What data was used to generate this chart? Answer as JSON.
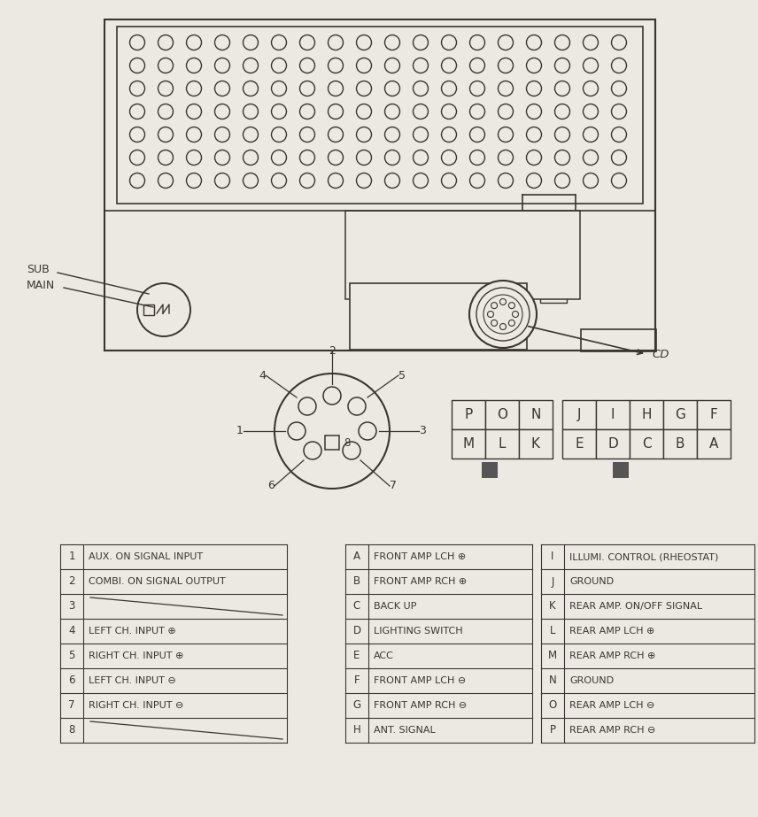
{
  "bg_color": "#ece9e2",
  "line_color": "#3a3530",
  "table1": {
    "rows": [
      [
        "1",
        "AUX. ON SIGNAL INPUT"
      ],
      [
        "2",
        "COMBI. ON SIGNAL OUTPUT"
      ],
      [
        "3",
        ""
      ],
      [
        "4",
        "LEFT CH. INPUT ⊕"
      ],
      [
        "5",
        "RIGHT CH. INPUT ⊕"
      ],
      [
        "6",
        "LEFT CH. INPUT ⊖"
      ],
      [
        "7",
        "RIGHT CH. INPUT ⊖"
      ],
      [
        "8",
        ""
      ]
    ]
  },
  "table2": {
    "rows": [
      [
        "A",
        "FRONT AMP LCH ⊕"
      ],
      [
        "B",
        "FRONT AMP RCH ⊕"
      ],
      [
        "C",
        "BACK UP"
      ],
      [
        "D",
        "LIGHTING SWITCH"
      ],
      [
        "E",
        "ACC"
      ],
      [
        "F",
        "FRONT AMP LCH ⊖"
      ],
      [
        "G",
        "FRONT AMP RCH ⊖"
      ],
      [
        "H",
        "ANT. SIGNAL"
      ]
    ]
  },
  "table3": {
    "rows": [
      [
        "I",
        "ILLUMI. CONTROL (RHEOSTAT)"
      ],
      [
        "J",
        "GROUND"
      ],
      [
        "K",
        "REAR AMP. ON/OFF SIGNAL"
      ],
      [
        "L",
        "REAR AMP LCH ⊕"
      ],
      [
        "M",
        "REAR AMP RCH ⊕"
      ],
      [
        "N",
        "GROUND"
      ],
      [
        "O",
        "REAR AMP LCH ⊖"
      ],
      [
        "P",
        "REAR AMP RCH ⊖"
      ]
    ]
  },
  "connector_grid1": [
    [
      "P",
      "O",
      "N"
    ],
    [
      "M",
      "L",
      "K"
    ]
  ],
  "connector_grid2": [
    [
      "J",
      "I",
      "H",
      "G",
      "F"
    ],
    [
      "E",
      "D",
      "C",
      "B",
      "A"
    ]
  ]
}
